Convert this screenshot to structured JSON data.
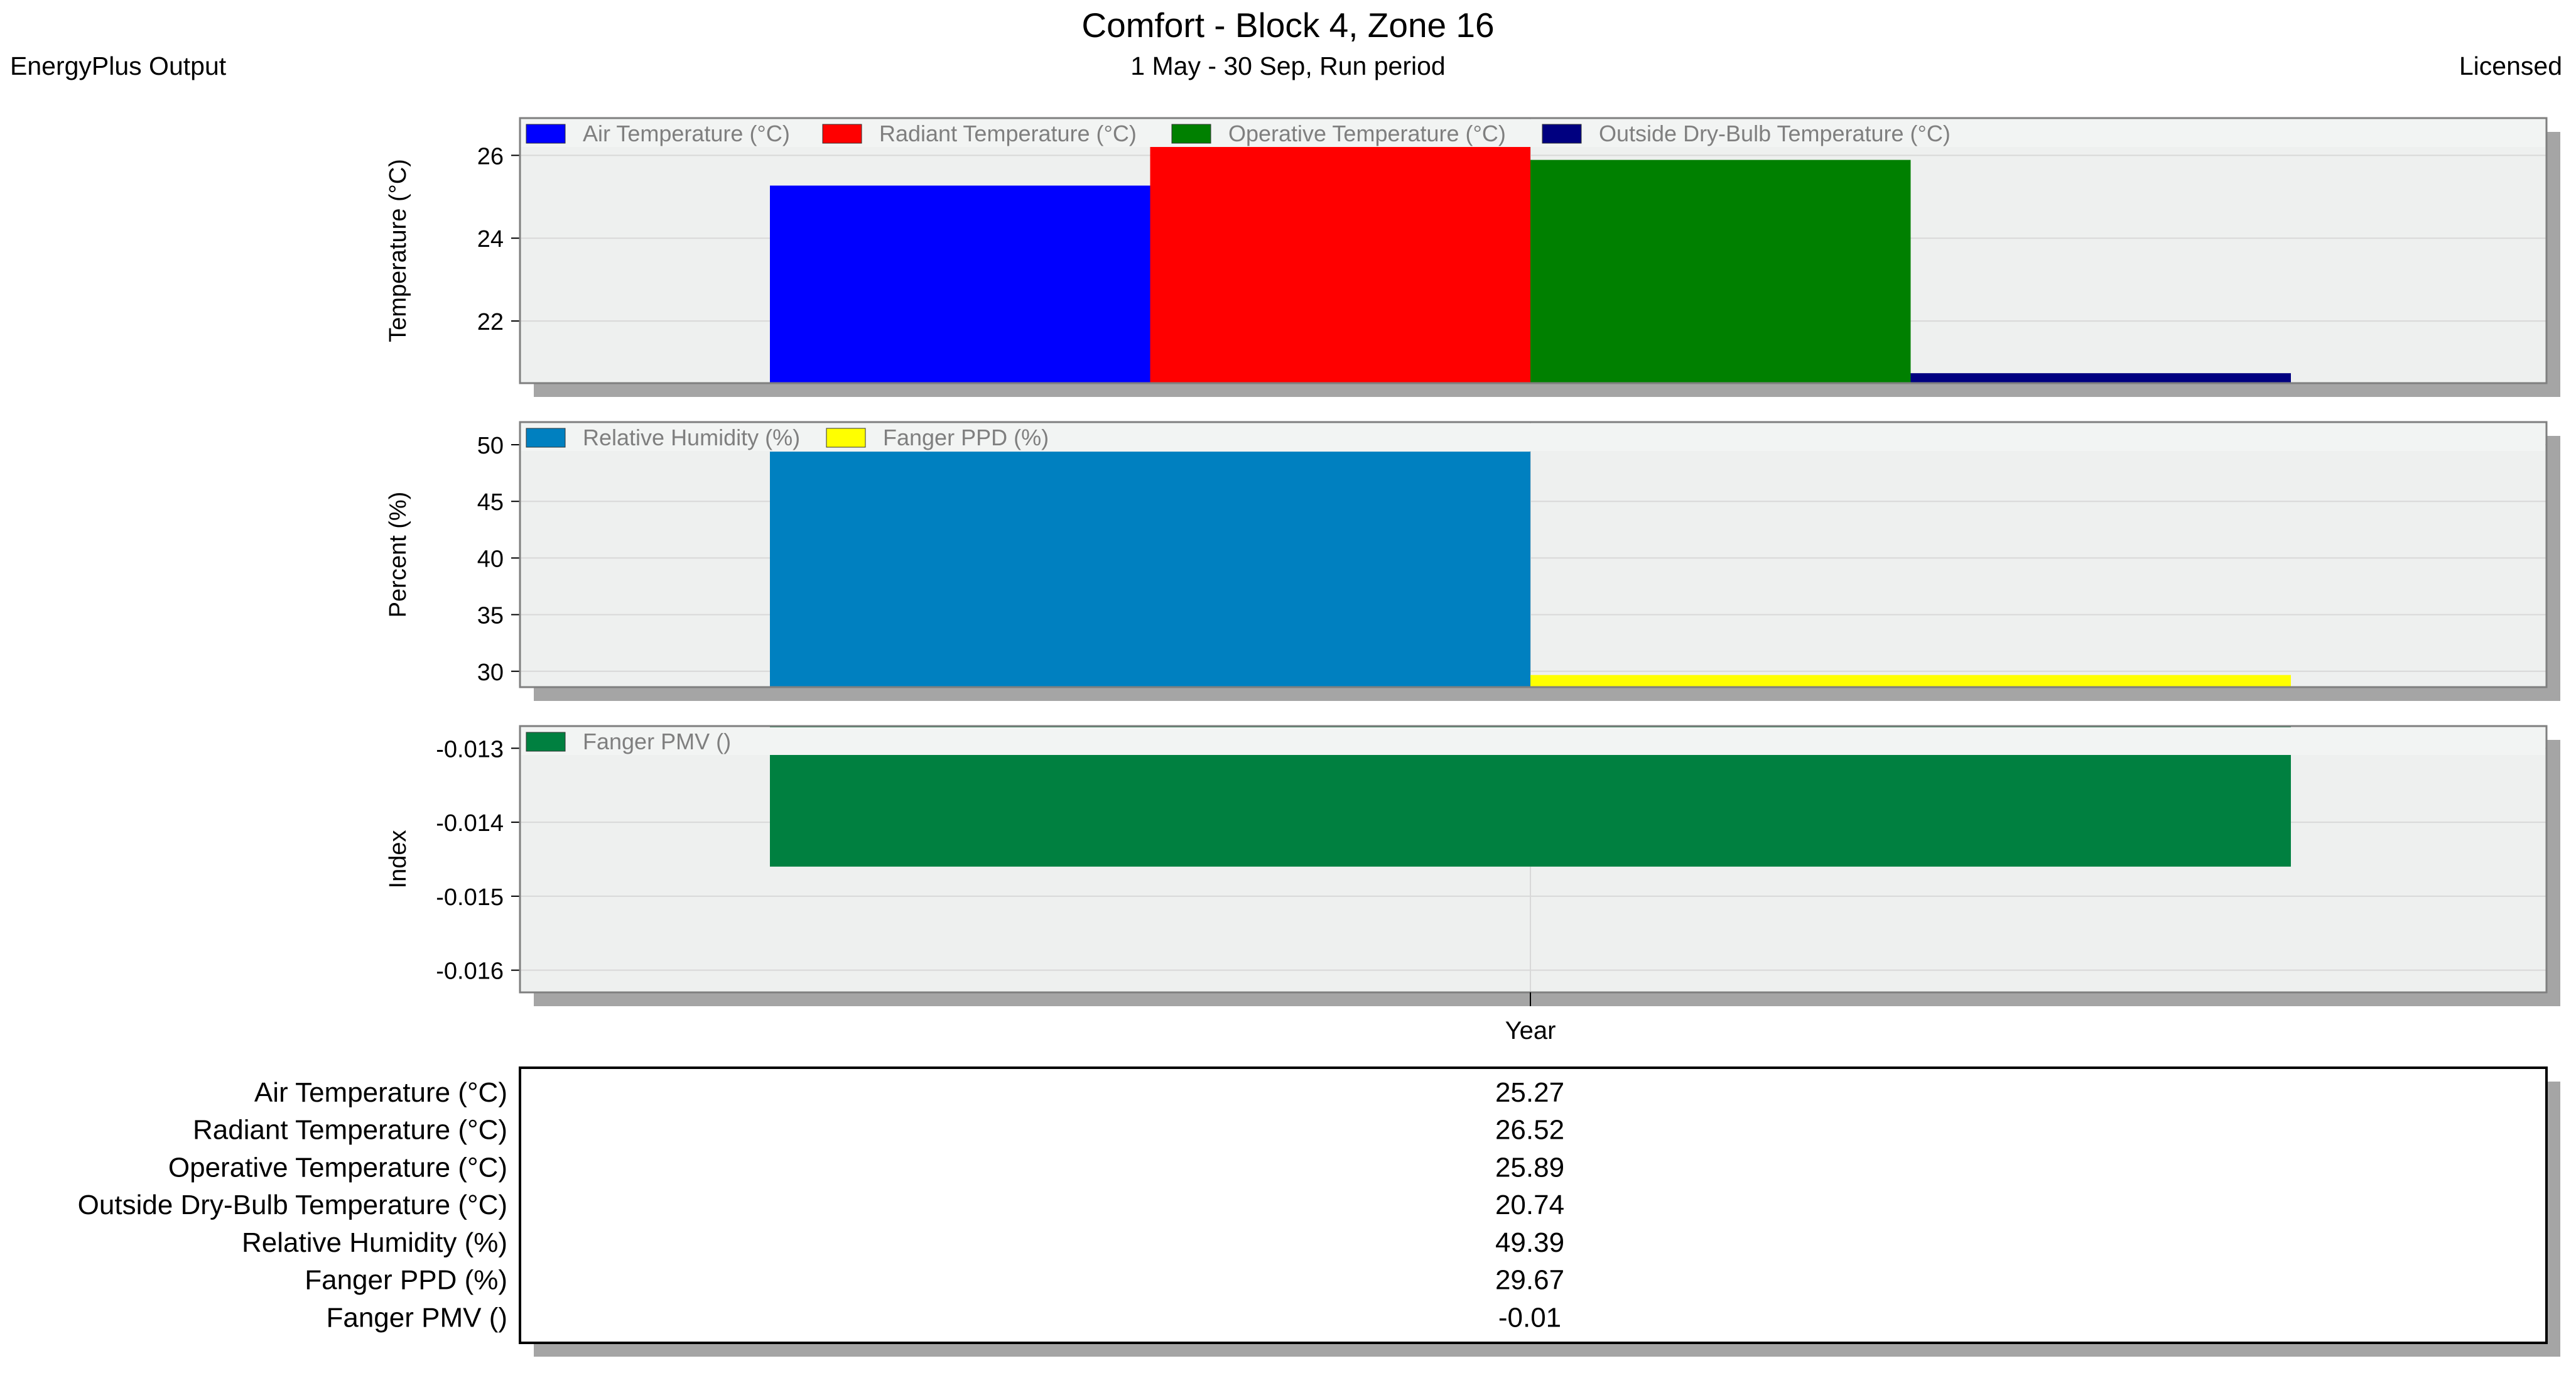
{
  "header": {
    "title": "Comfort - Block 4, Zone 16",
    "subtitle": "1 May - 30 Sep, Run period",
    "left": "EnergyPlus Output",
    "right": "Licensed"
  },
  "colors": {
    "plot_bg": "#eef0ef",
    "shadow": "#a5a5a5",
    "grid": "#d8d8d8",
    "axis_text": "#000000",
    "legend_text": "#7f7f7f"
  },
  "chart_data": [
    {
      "type": "bar",
      "ylabel": "Temperature (°C)",
      "ylim": [
        20.5,
        26.9
      ],
      "yticks": [
        22,
        24,
        26
      ],
      "grid": true,
      "legend": "top-left",
      "categories": [
        "Year"
      ],
      "series": [
        {
          "name": "Air Temperature (°C)",
          "values": [
            25.27
          ],
          "color": "#0000ff"
        },
        {
          "name": "Radiant Temperature (°C)",
          "values": [
            26.52
          ],
          "color": "#ff0000"
        },
        {
          "name": "Operative Temperature (°C)",
          "values": [
            25.89
          ],
          "color": "#008000"
        },
        {
          "name": "Outside Dry-Bulb Temperature (°C)",
          "values": [
            20.74
          ],
          "color": "#000080"
        }
      ]
    },
    {
      "type": "bar",
      "ylabel": "Percent (%)",
      "ylim": [
        28.6,
        52.0
      ],
      "yticks": [
        30,
        35,
        40,
        45,
        50
      ],
      "grid": true,
      "legend": "top-left",
      "categories": [
        "Year"
      ],
      "series": [
        {
          "name": "Relative Humidity (%)",
          "values": [
            49.39
          ],
          "color": "#0080c0"
        },
        {
          "name": "Fanger PPD (%)",
          "values": [
            29.67
          ],
          "color": "#ffff00"
        }
      ]
    },
    {
      "type": "bar",
      "ylabel": "Index",
      "ylim": [
        -0.0163,
        -0.0127
      ],
      "yticks": [
        -0.013,
        -0.014,
        -0.015,
        -0.016
      ],
      "grid": true,
      "legend": "top-left",
      "categories": [
        "Year"
      ],
      "xlabel": "Year",
      "series": [
        {
          "name": "Fanger PMV ()",
          "values": [
            -0.0146
          ],
          "color": "#008040"
        }
      ]
    }
  ],
  "table": {
    "rows": [
      {
        "label": "Air Temperature (°C)",
        "value": "25.27"
      },
      {
        "label": "Radiant Temperature (°C)",
        "value": "26.52"
      },
      {
        "label": "Operative Temperature (°C)",
        "value": "25.89"
      },
      {
        "label": "Outside Dry-Bulb Temperature (°C)",
        "value": "20.74"
      },
      {
        "label": "Relative Humidity (%)",
        "value": "49.39"
      },
      {
        "label": "Fanger PPD (%)",
        "value": "29.67"
      },
      {
        "label": "Fanger PMV ()",
        "value": "-0.01"
      }
    ]
  }
}
